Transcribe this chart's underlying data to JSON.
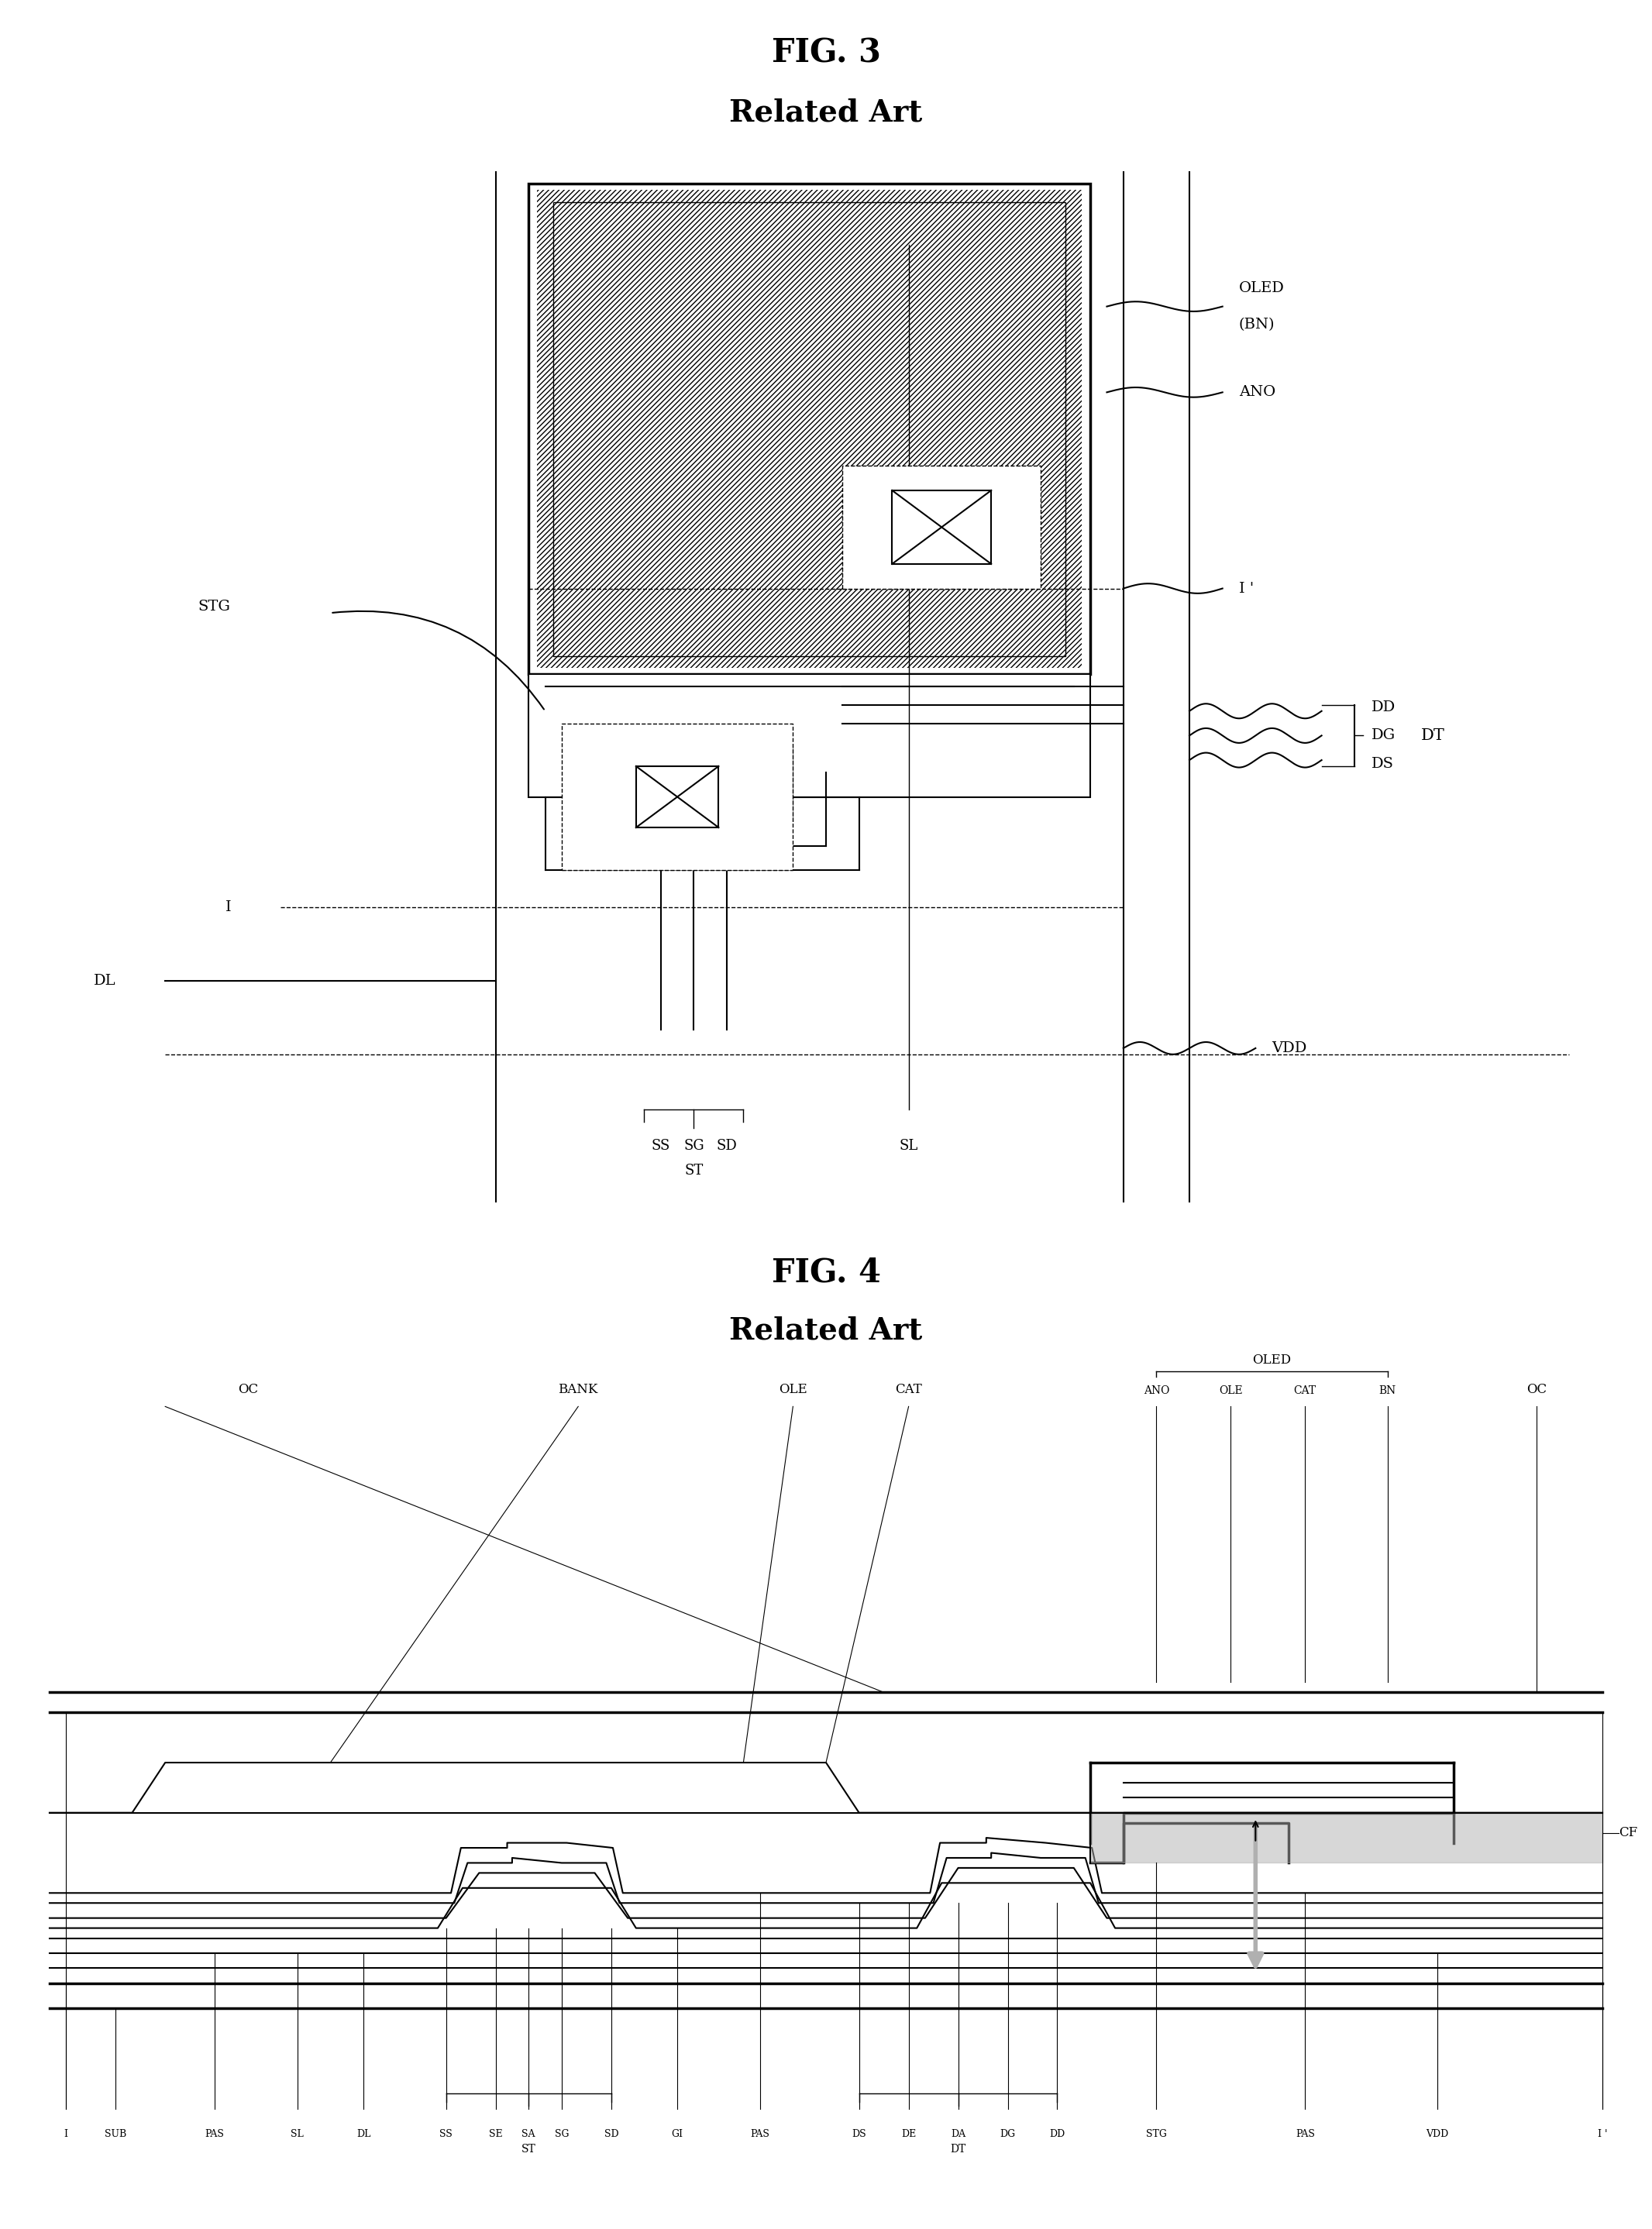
{
  "fig_width": 21.32,
  "fig_height": 28.77,
  "bg_color": "#ffffff",
  "fig3_title": "FIG. 3",
  "fig3_subtitle": "Related Art",
  "fig4_title": "FIG. 4",
  "fig4_subtitle": "Related Art",
  "line_color": "#000000",
  "gray_color": "#b0b0b0"
}
